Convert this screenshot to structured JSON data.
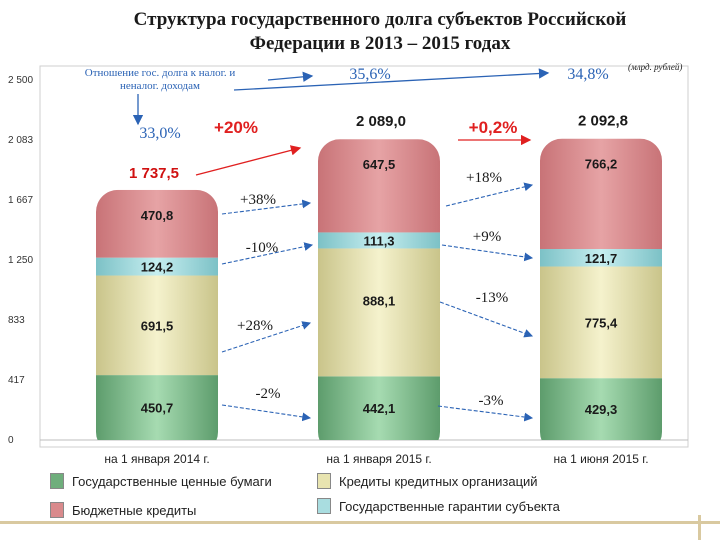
{
  "chart_data": {
    "type": "bar",
    "title": "Структура государственного долга субъектов Российской Федерации в 2013 – 2015 годах",
    "title_lines": [
      "Структура государственного долга субъектов Российской",
      "Федерации в 2013 – 2015 годах"
    ],
    "unit_note": "(млрд. рублей)",
    "ratio_label": "Отношение гос. долга к налог. и неналог. доходам",
    "ratio_label_lines": [
      "Отношение гос. долга к налог. и",
      "неналог. доходам"
    ],
    "ratios": [
      "33,0%",
      "35,6%",
      "34,8%"
    ],
    "categories": [
      "на 1 января 2014 г.",
      "на 1 января 2015 г.",
      "на 1 июня 2015 г."
    ],
    "totals": [
      1737.5,
      2089.0,
      2092.8
    ],
    "total_labels": [
      "1 737,5",
      "2 089,0",
      "2 092,8"
    ],
    "growth_total": [
      "+20%",
      "+0,2%"
    ],
    "yticks": [
      0,
      417,
      833,
      1250,
      1667,
      2083,
      2500
    ],
    "ytick_labels": [
      "0",
      "417",
      "833",
      "1 250",
      "1 667",
      "2 083",
      "2 500"
    ],
    "ylim": [
      0,
      2500
    ],
    "series": [
      {
        "name": "Государственные ценные бумаги",
        "values": [
          450.7,
          442.1,
          429.3
        ],
        "labels": [
          "450,7",
          "442,1",
          "429,3"
        ],
        "growth": [
          "-2%",
          "-3%"
        ],
        "color": "#8fcb9c"
      },
      {
        "name": "Кредиты кредитных организаций",
        "values": [
          691.5,
          888.1,
          775.4
        ],
        "labels": [
          "691,5",
          "888,1",
          "775,4"
        ],
        "growth": [
          "+28%",
          "-13%"
        ],
        "color": "#e8e4b0"
      },
      {
        "name": "Государственные гарантии субъекта",
        "values": [
          124.2,
          111.3,
          121.7
        ],
        "labels": [
          "124,2",
          "111,3",
          "121,7"
        ],
        "growth": [
          "-10%",
          "+9%"
        ],
        "color": "#a9dde0"
      },
      {
        "name": "Бюджетные кредиты",
        "values": [
          470.8,
          647.5,
          766.2
        ],
        "labels": [
          "470,8",
          "647,5",
          "766,2"
        ],
        "growth": [
          "+38%",
          "+18%"
        ],
        "color": "#d98a8c"
      }
    ],
    "legend": [
      "Государственные ценные бумаги",
      "Кредиты кредитных организаций",
      "Бюджетные кредиты",
      "Государственные гарантии субъекта"
    ]
  }
}
